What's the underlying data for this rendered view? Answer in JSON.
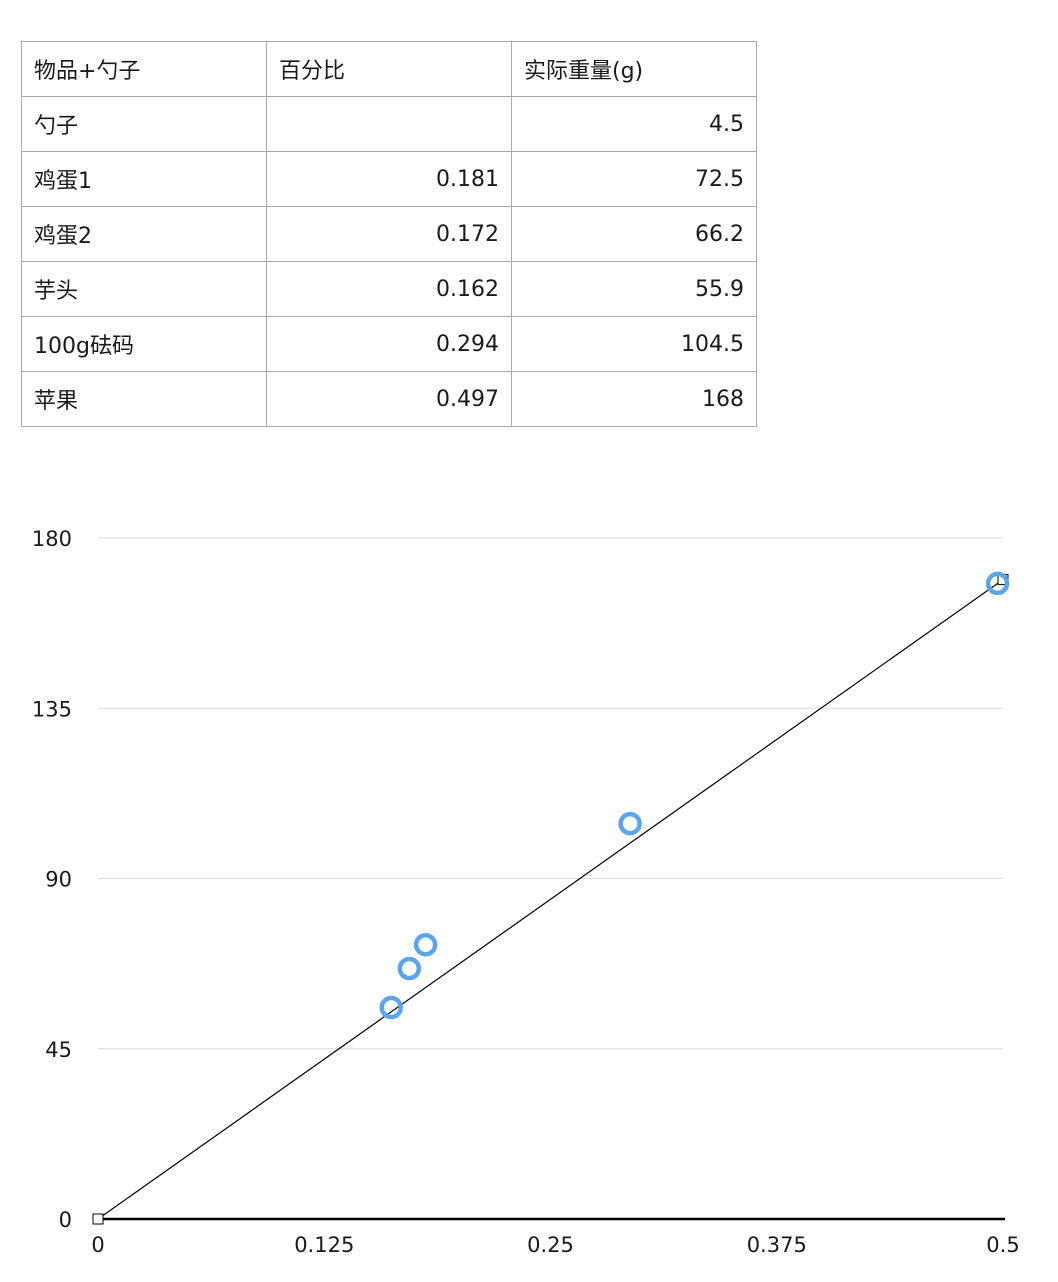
{
  "table": {
    "headers": [
      "物品+勺子",
      "百分比",
      "实际重量(g)"
    ],
    "rows": [
      [
        "勺子",
        "",
        "4.5"
      ],
      [
        "鸡蛋1",
        "0.181",
        "72.5"
      ],
      [
        "鸡蛋2",
        "0.172",
        "66.2"
      ],
      [
        "芋头",
        "0.162",
        "55.9"
      ],
      [
        "100g砝码",
        "0.294",
        "104.5"
      ],
      [
        "苹果",
        "0.497",
        "168"
      ]
    ]
  },
  "chart_data": {
    "type": "scatter",
    "title": "",
    "xlabel": "",
    "ylabel": "",
    "xlim": [
      0,
      0.5
    ],
    "ylim": [
      0,
      180
    ],
    "x_ticks": [
      "0",
      "0.125",
      "0.25",
      "0.375",
      "0.5"
    ],
    "y_ticks": [
      "0",
      "45",
      "90",
      "135",
      "180"
    ],
    "grid": "horizontal",
    "series": [
      {
        "x": [
          0.181,
          0.172,
          0.162,
          0.294,
          0.497
        ],
        "y": [
          72.5,
          66.2,
          55.9,
          104.5,
          168
        ],
        "color": "#5aa5ec"
      }
    ],
    "trendline": {
      "x": [
        0,
        0.5
      ],
      "y": [
        0,
        169
      ],
      "color": "#000000"
    }
  }
}
